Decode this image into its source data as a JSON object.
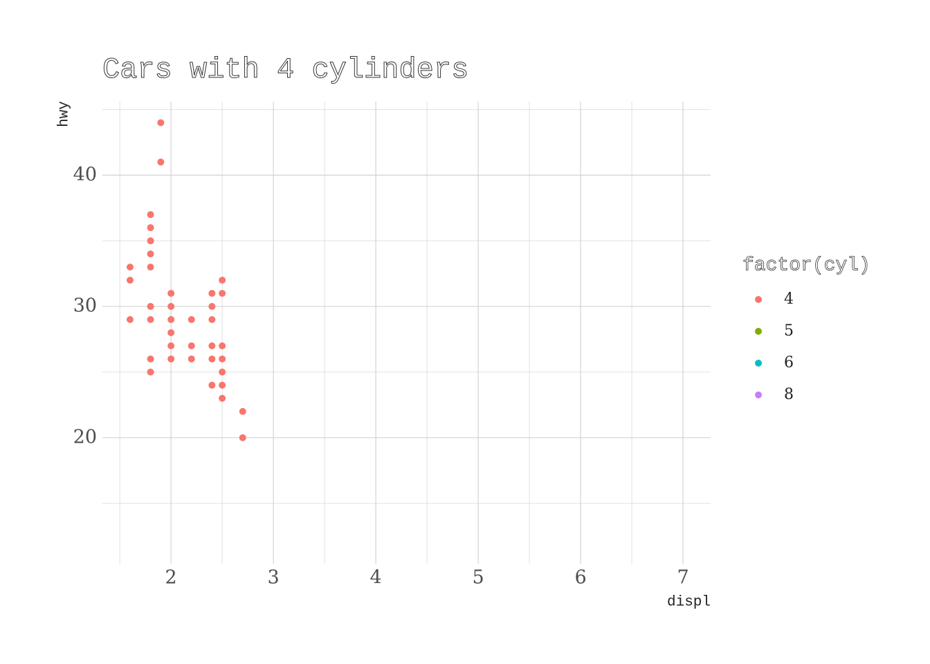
{
  "chart_data": {
    "type": "scatter",
    "title": "Cars with 4 cylinders",
    "x_label": "displ",
    "y_label": "hwy",
    "legend_title": "factor(cyl)",
    "legend_position": "right",
    "xlim": [
      1.33,
      7.27
    ],
    "ylim": [
      10.4,
      45.6
    ],
    "xticks": [
      2,
      3,
      4,
      5,
      6,
      7
    ],
    "yticks": [
      20,
      30,
      40
    ],
    "x_minor_grid": [
      1.5,
      2.5,
      3.5,
      4.5,
      5.5,
      6.5
    ],
    "y_minor_grid": [
      15,
      25,
      35,
      45
    ],
    "grid": true,
    "series": [
      {
        "name": "4",
        "color": "#F8766D",
        "x": [
          1.6,
          1.6,
          1.6,
          1.8,
          1.8,
          1.8,
          1.8,
          1.8,
          1.8,
          1.8,
          1.8,
          1.8,
          1.9,
          1.9,
          2.0,
          2.0,
          2.0,
          2.0,
          2.0,
          2.0,
          2.2,
          2.2,
          2.2,
          2.4,
          2.4,
          2.4,
          2.4,
          2.4,
          2.4,
          2.5,
          2.5,
          2.5,
          2.5,
          2.5,
          2.5,
          2.5,
          2.7,
          2.7
        ],
        "y": [
          33,
          32,
          29,
          37,
          36,
          35,
          34,
          33,
          30,
          29,
          26,
          25,
          44,
          41,
          31,
          30,
          29,
          28,
          27,
          26,
          29,
          27,
          26,
          31,
          30,
          29,
          27,
          26,
          24,
          32,
          31,
          27,
          26,
          25,
          24,
          23,
          22,
          20
        ]
      },
      {
        "name": "5",
        "color": "#7CAE00",
        "x": [],
        "y": []
      },
      {
        "name": "6",
        "color": "#00BFC4",
        "x": [],
        "y": []
      },
      {
        "name": "8",
        "color": "#C77CFF",
        "x": [],
        "y": []
      }
    ]
  }
}
